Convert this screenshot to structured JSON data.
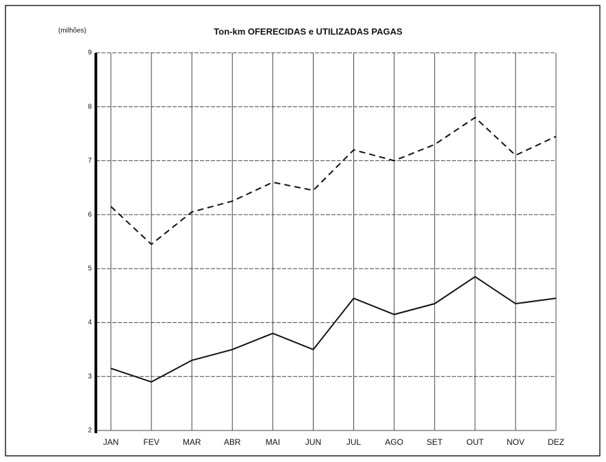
{
  "chart_data": {
    "type": "line",
    "title": "Ton-km OFERECIDAS e UTILIZADAS PAGAS",
    "y_label": "(milhões)",
    "categories": [
      "JAN",
      "FEV",
      "MAR",
      "ABR",
      "MAI",
      "JUN",
      "JUL",
      "AGO",
      "SET",
      "OUT",
      "NOV",
      "DEZ"
    ],
    "series": [
      {
        "color": "#111111",
        "style": "dashed",
        "values": [
          6.15,
          5.45,
          6.05,
          6.25,
          6.6,
          6.45,
          7.2,
          7.0,
          7.3,
          7.8,
          7.1,
          7.45
        ]
      },
      {
        "color": "#111111",
        "style": "solid",
        "values": [
          3.15,
          2.9,
          3.3,
          3.5,
          3.8,
          3.5,
          4.45,
          4.15,
          4.35,
          4.85,
          4.35,
          4.45
        ]
      }
    ],
    "ylim": [
      2,
      9
    ],
    "yticks": [
      2,
      3,
      4,
      5,
      6,
      7,
      8,
      9
    ],
    "grid": true
  }
}
